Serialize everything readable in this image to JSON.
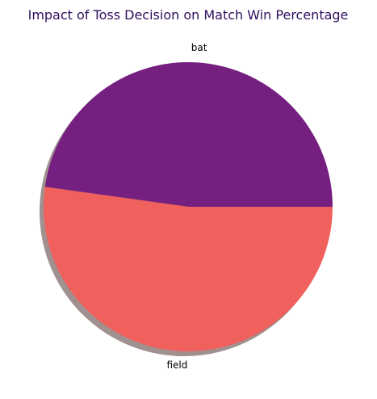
{
  "chart_data": {
    "type": "pie",
    "title": "Impact of Toss Decision on Match Win Percentage",
    "categories": [
      "bat",
      "field"
    ],
    "values": [
      47.8,
      52.2
    ],
    "colors": [
      "#751F80",
      "#F0605D"
    ],
    "title_color": "#2D0F5E",
    "shadow": true,
    "shadow_color": "#A09090",
    "start_angle_deg": 0,
    "direction": "counterclockwise"
  }
}
